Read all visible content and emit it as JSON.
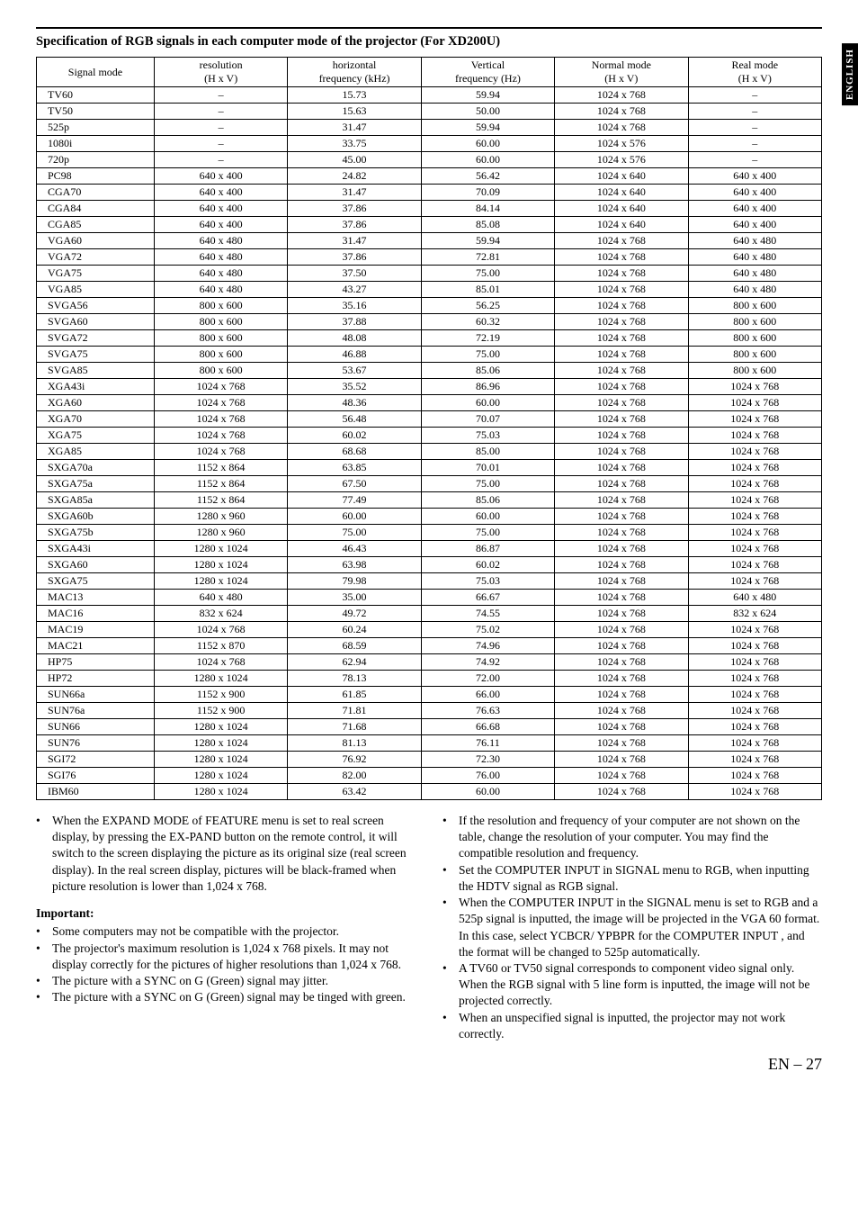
{
  "sideTab": "ENGLISH",
  "title": "Specification of RGB signals in each computer mode of the projector (For XD200U)",
  "headers": {
    "c0": "Signal mode",
    "c1a": "resolution",
    "c1b": "(H x V)",
    "c2a": "horizontal",
    "c2b": "frequency (kHz)",
    "c3a": "Vertical",
    "c3b": "frequency (Hz)",
    "c4a": "Normal mode",
    "c4b": "(H x V)",
    "c5a": "Real mode",
    "c5b": "(H x V)"
  },
  "rows": [
    [
      "TV60",
      "–",
      "15.73",
      "59.94",
      "1024 x 768",
      "–"
    ],
    [
      "TV50",
      "–",
      "15.63",
      "50.00",
      "1024 x 768",
      "–"
    ],
    [
      "525p",
      "–",
      "31.47",
      "59.94",
      "1024 x 768",
      "–"
    ],
    [
      "1080i",
      "–",
      "33.75",
      "60.00",
      "1024 x 576",
      "–"
    ],
    [
      "720p",
      "–",
      "45.00",
      "60.00",
      "1024 x 576",
      "–"
    ],
    [
      "PC98",
      "640 x 400",
      "24.82",
      "56.42",
      "1024 x 640",
      "640 x 400"
    ],
    [
      "CGA70",
      "640 x 400",
      "31.47",
      "70.09",
      "1024 x 640",
      "640 x 400"
    ],
    [
      "CGA84",
      "640 x 400",
      "37.86",
      "84.14",
      "1024 x 640",
      "640 x 400"
    ],
    [
      "CGA85",
      "640 x 400",
      "37.86",
      "85.08",
      "1024 x 640",
      "640 x 400"
    ],
    [
      "VGA60",
      "640 x 480",
      "31.47",
      "59.94",
      "1024 x 768",
      "640 x 480"
    ],
    [
      "VGA72",
      "640 x 480",
      "37.86",
      "72.81",
      "1024 x 768",
      "640 x 480"
    ],
    [
      "VGA75",
      "640 x 480",
      "37.50",
      "75.00",
      "1024 x 768",
      "640 x 480"
    ],
    [
      "VGA85",
      "640 x 480",
      "43.27",
      "85.01",
      "1024 x 768",
      "640 x 480"
    ],
    [
      "SVGA56",
      "800 x 600",
      "35.16",
      "56.25",
      "1024 x 768",
      "800 x 600"
    ],
    [
      "SVGA60",
      "800 x 600",
      "37.88",
      "60.32",
      "1024 x 768",
      "800 x 600"
    ],
    [
      "SVGA72",
      "800 x 600",
      "48.08",
      "72.19",
      "1024 x 768",
      "800 x 600"
    ],
    [
      "SVGA75",
      "800 x 600",
      "46.88",
      "75.00",
      "1024 x 768",
      "800 x 600"
    ],
    [
      "SVGA85",
      "800 x 600",
      "53.67",
      "85.06",
      "1024 x 768",
      "800 x 600"
    ],
    [
      "XGA43i",
      "1024 x 768",
      "35.52",
      "86.96",
      "1024 x 768",
      "1024 x 768"
    ],
    [
      "XGA60",
      "1024 x 768",
      "48.36",
      "60.00",
      "1024 x 768",
      "1024 x 768"
    ],
    [
      "XGA70",
      "1024 x 768",
      "56.48",
      "70.07",
      "1024 x 768",
      "1024 x 768"
    ],
    [
      "XGA75",
      "1024 x 768",
      "60.02",
      "75.03",
      "1024 x 768",
      "1024 x 768"
    ],
    [
      "XGA85",
      "1024 x 768",
      "68.68",
      "85.00",
      "1024 x 768",
      "1024 x 768"
    ],
    [
      "SXGA70a",
      "1152 x 864",
      "63.85",
      "70.01",
      "1024 x 768",
      "1024 x 768"
    ],
    [
      "SXGA75a",
      "1152 x 864",
      "67.50",
      "75.00",
      "1024 x 768",
      "1024 x 768"
    ],
    [
      "SXGA85a",
      "1152 x 864",
      "77.49",
      "85.06",
      "1024 x 768",
      "1024 x 768"
    ],
    [
      "SXGA60b",
      "1280 x 960",
      "60.00",
      "60.00",
      "1024 x 768",
      "1024 x 768"
    ],
    [
      "SXGA75b",
      "1280 x 960",
      "75.00",
      "75.00",
      "1024 x 768",
      "1024 x 768"
    ],
    [
      "SXGA43i",
      "1280 x 1024",
      "46.43",
      "86.87",
      "1024 x 768",
      "1024 x 768"
    ],
    [
      "SXGA60",
      "1280 x 1024",
      "63.98",
      "60.02",
      "1024 x 768",
      "1024 x 768"
    ],
    [
      "SXGA75",
      "1280 x 1024",
      "79.98",
      "75.03",
      "1024 x 768",
      "1024 x 768"
    ],
    [
      "MAC13",
      "640 x 480",
      "35.00",
      "66.67",
      "1024 x 768",
      "640 x 480"
    ],
    [
      "MAC16",
      "832 x 624",
      "49.72",
      "74.55",
      "1024 x 768",
      "832 x 624"
    ],
    [
      "MAC19",
      "1024 x 768",
      "60.24",
      "75.02",
      "1024 x 768",
      "1024 x 768"
    ],
    [
      "MAC21",
      "1152 x 870",
      "68.59",
      "74.96",
      "1024 x 768",
      "1024 x 768"
    ],
    [
      "HP75",
      "1024 x 768",
      "62.94",
      "74.92",
      "1024 x 768",
      "1024 x 768"
    ],
    [
      "HP72",
      "1280 x 1024",
      "78.13",
      "72.00",
      "1024 x 768",
      "1024 x 768"
    ],
    [
      "SUN66a",
      "1152 x 900",
      "61.85",
      "66.00",
      "1024 x 768",
      "1024 x 768"
    ],
    [
      "SUN76a",
      "1152 x 900",
      "71.81",
      "76.63",
      "1024 x 768",
      "1024 x 768"
    ],
    [
      "SUN66",
      "1280 x 1024",
      "71.68",
      "66.68",
      "1024 x 768",
      "1024 x 768"
    ],
    [
      "SUN76",
      "1280 x 1024",
      "81.13",
      "76.11",
      "1024 x 768",
      "1024 x 768"
    ],
    [
      "SGI72",
      "1280 x 1024",
      "76.92",
      "72.30",
      "1024 x 768",
      "1024 x 768"
    ],
    [
      "SGI76",
      "1280 x 1024",
      "82.00",
      "76.00",
      "1024 x 768",
      "1024 x 768"
    ],
    [
      "IBM60",
      "1280 x 1024",
      "63.42",
      "60.00",
      "1024 x 768",
      "1024 x 768"
    ]
  ],
  "left": {
    "b1": "When the EXPAND MODE of FEATURE menu is set to real screen display, by pressing the EX-PAND button on the remote control, it will switch to the screen displaying the picture as its original size (real screen display).  In the real screen display, pictures will be black-framed when picture resolution is lower than 1,024 x 768.",
    "importantLabel": "Important:",
    "b2": "Some computers may not be compatible with the projector.",
    "b3": "The projector's maximum resolution is 1,024 x 768 pixels.  It may not display correctly for the pictures of higher resolutions than 1,024 x 768.",
    "b4": "The picture with a SYNC on G (Green) signal may jitter.",
    "b5": "The picture with a SYNC on G (Green) signal may be tinged with green."
  },
  "right": {
    "b1": "If the resolution and frequency of your computer are not shown on the table, change the resolution of your computer. You may find the compatible resolution and frequency.",
    "b2": "Set the COMPUTER INPUT in SIGNAL menu to RGB, when inputting the HDTV signal as RGB signal.",
    "b3": "When the COMPUTER INPUT in the SIGNAL menu is set to RGB and a 525p signal is inputted, the image will be projected in the VGA 60 format. In this case, select YCBCR/ YPBPR for the COMPUTER INPUT , and the format will be changed to 525p automatically.",
    "b4": "A TV60 or TV50 signal corresponds to component video signal only. When the RGB signal with 5 line form is inputted, the image will not be projected correctly.",
    "b5": "When an unspecified signal is inputted, the projector may not work correctly."
  },
  "pagenum": "EN – 27"
}
